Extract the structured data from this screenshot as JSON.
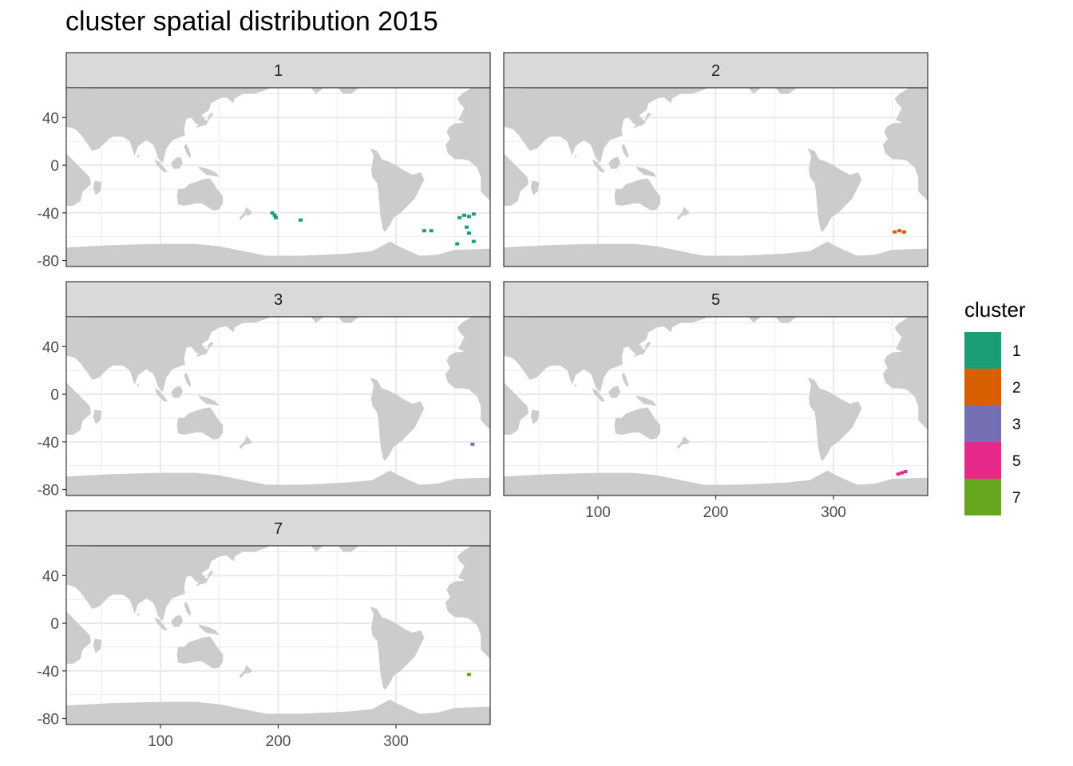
{
  "title": "cluster spatial distribution 2015",
  "facets": [
    {
      "label": "1",
      "cluster": "1",
      "patches": [
        [
          195,
          -40
        ],
        [
          197,
          -42
        ],
        [
          198,
          -44
        ],
        [
          219,
          -46
        ],
        [
          354,
          -44
        ],
        [
          358,
          -42
        ],
        [
          362,
          -43
        ],
        [
          366,
          -41
        ],
        [
          360,
          -52
        ],
        [
          362,
          -57
        ],
        [
          352,
          -66
        ],
        [
          366,
          -64
        ],
        [
          330,
          -55
        ],
        [
          324,
          -55
        ]
      ]
    },
    {
      "label": "2",
      "cluster": "2",
      "patches": [
        [
          352,
          -56
        ],
        [
          356,
          -55
        ],
        [
          360,
          -56
        ]
      ]
    },
    {
      "label": "3",
      "cluster": "3",
      "patches": [
        [
          365,
          -42
        ]
      ]
    },
    {
      "label": "5",
      "cluster": "5",
      "patches": [
        [
          355,
          -67
        ],
        [
          358,
          -66
        ],
        [
          361,
          -65
        ]
      ]
    },
    {
      "label": "7",
      "cluster": "7",
      "patches": [
        [
          362,
          -43
        ]
      ]
    }
  ],
  "x_axis": {
    "limits": [
      20,
      380
    ],
    "breaks": [
      100,
      200,
      300
    ],
    "labels": [
      "100",
      "200",
      "300"
    ]
  },
  "y_axis": {
    "limits": [
      -85,
      65
    ],
    "breaks": [
      40,
      0,
      -40,
      -80
    ],
    "labels": [
      "40",
      "0",
      "-40",
      "-80"
    ]
  },
  "legend": {
    "title": "cluster",
    "items": [
      {
        "label": "1",
        "color": "#1B9E77"
      },
      {
        "label": "2",
        "color": "#D95F02"
      },
      {
        "label": "3",
        "color": "#7570B3"
      },
      {
        "label": "5",
        "color": "#E7298A"
      },
      {
        "label": "7",
        "color": "#66A61E"
      }
    ]
  },
  "colors": {
    "land": "#CCCCCC",
    "ocean": "#FFFFFF",
    "grid": "#EBEBEB",
    "strip": "#D9D9D9",
    "border": "#333333"
  }
}
